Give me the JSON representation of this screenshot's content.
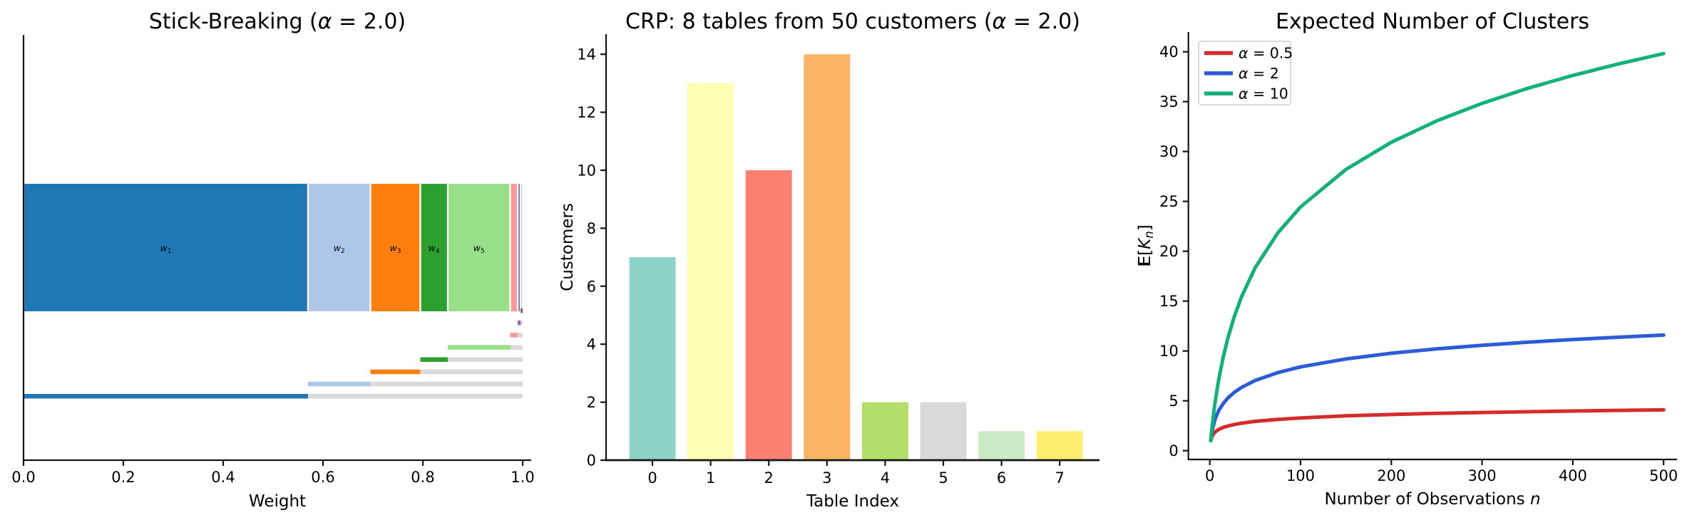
{
  "figure": {
    "background": "#ffffff",
    "text_color": "#000000",
    "spine_color": "#141414"
  },
  "chart_data": [
    {
      "id": "stick-breaking",
      "type": "bar",
      "subtype": "horizontal-stacked-stick-breaking",
      "title": "Stick-Breaking (α = 2.0)",
      "title_rich": [
        {
          "t": "Stick-Breaking ("
        },
        {
          "t": "α",
          "italic": true
        },
        {
          "t": " = 2.0)"
        }
      ],
      "xlabel": "Weight",
      "xlabel_rich": [
        {
          "t": "Weight"
        }
      ],
      "ylabel": "",
      "xlim": [
        0,
        1.0
      ],
      "xticks": [
        {
          "v": 0.0,
          "label": "0.0"
        },
        {
          "v": 0.2,
          "label": "0.2"
        },
        {
          "v": 0.4,
          "label": "0.4"
        },
        {
          "v": 0.6,
          "label": "0.6"
        },
        {
          "v": 0.8,
          "label": "0.8"
        },
        {
          "v": 1.0,
          "label": "1.0"
        }
      ],
      "weights": [
        0.57,
        0.125,
        0.1,
        0.055,
        0.125,
        0.015,
        0.006,
        0.004
      ],
      "segment_colors": [
        "#1f77b4",
        "#aec7e8",
        "#ff7f0e",
        "#2ca02c",
        "#98df8a",
        "#ff9896",
        "#9467bd",
        "#8c564b"
      ],
      "segment_labels_rich": [
        [
          {
            "t": "w",
            "italic": true
          },
          {
            "t": "1",
            "sub": true
          }
        ],
        [
          {
            "t": "w",
            "italic": true
          },
          {
            "t": "2",
            "sub": true
          }
        ],
        [
          {
            "t": "w",
            "italic": true
          },
          {
            "t": "3",
            "sub": true
          }
        ],
        [
          {
            "t": "w",
            "italic": true
          },
          {
            "t": "4",
            "sub": true
          }
        ],
        [
          {
            "t": "w",
            "italic": true
          },
          {
            "t": "5",
            "sub": true
          }
        ]
      ],
      "remainder_color": "#d9d9d9",
      "note": "Top stacked bar shows final weights w1..w8; thin rows below show each sequential break with light gray = remaining stick"
    },
    {
      "id": "crp",
      "type": "bar",
      "title": "CRP: 8 tables from 50 customers (α = 2.0)",
      "title_rich": [
        {
          "t": "CRP: 8 tables from 50 customers ("
        },
        {
          "t": "α",
          "italic": true
        },
        {
          "t": " = 2.0)"
        }
      ],
      "xlabel": "Table Index",
      "xlabel_rich": [
        {
          "t": "Table Index"
        }
      ],
      "ylabel": "Customers",
      "ylabel_rich": [
        {
          "t": "Customers"
        }
      ],
      "categories": [
        "0",
        "1",
        "2",
        "3",
        "4",
        "5",
        "6",
        "7"
      ],
      "values": [
        7,
        13,
        10,
        14,
        2,
        2,
        1,
        1
      ],
      "bar_colors": [
        "#8dd3c7",
        "#ffffb3",
        "#fb8072",
        "#fdb462",
        "#b3de69",
        "#d9d9d9",
        "#ccebc5",
        "#ffed6f"
      ],
      "yticks": [
        0,
        2,
        4,
        6,
        8,
        10,
        12,
        14
      ],
      "ylim": [
        0,
        14.7
      ]
    },
    {
      "id": "expected-clusters",
      "type": "line",
      "title": "Expected Number of Clusters",
      "title_rich": [
        {
          "t": "Expected Number of Clusters"
        }
      ],
      "xlabel": "Number of Observations n",
      "xlabel_rich": [
        {
          "t": "Number of Observations "
        },
        {
          "t": "n",
          "italic": true
        }
      ],
      "ylabel": "E[K_n]",
      "ylabel_rich": [
        {
          "t": "E",
          "doublestruck": true
        },
        {
          "t": "["
        },
        {
          "t": "K",
          "italic": true
        },
        {
          "t": "n",
          "italic": true,
          "sub": true
        },
        {
          "t": "]"
        }
      ],
      "xticks": [
        0,
        100,
        200,
        300,
        400,
        500
      ],
      "yticks": [
        0,
        5,
        10,
        15,
        20,
        25,
        30,
        35,
        40
      ],
      "xlim": [
        -24,
        513
      ],
      "ylim": [
        -0.9,
        42
      ],
      "x": [
        1,
        2,
        3,
        5,
        7,
        10,
        15,
        20,
        27,
        35,
        50,
        75,
        100,
        150,
        200,
        250,
        300,
        350,
        400,
        450,
        500
      ],
      "series": [
        {
          "name": "α = 0.5",
          "label_rich": [
            {
              "t": "α",
              "italic": true
            },
            {
              "t": " = 0.5"
            }
          ],
          "color": "#d62b2b",
          "values": [
            1.0,
            1.33,
            1.53,
            1.79,
            1.95,
            2.13,
            2.34,
            2.48,
            2.63,
            2.76,
            2.94,
            3.14,
            3.28,
            3.49,
            3.63,
            3.74,
            3.83,
            3.91,
            3.98,
            4.04,
            4.09
          ]
        },
        {
          "name": "α = 2",
          "label_rich": [
            {
              "t": "α",
              "italic": true
            },
            {
              "t": " = 2"
            }
          ],
          "color": "#2b5bd9",
          "values": [
            1.0,
            1.67,
            2.17,
            2.9,
            3.44,
            4.04,
            4.76,
            5.29,
            5.86,
            6.35,
            7.04,
            7.83,
            8.4,
            9.2,
            9.77,
            10.21,
            10.57,
            10.88,
            11.15,
            11.38,
            11.59
          ]
        },
        {
          "name": "α = 10",
          "label_rich": [
            {
              "t": "α",
              "italic": true
            },
            {
              "t": " = 10"
            }
          ],
          "color": "#12b17c",
          "values": [
            1.0,
            1.91,
            2.74,
            4.37,
            5.52,
            7.19,
            9.47,
            11.33,
            13.46,
            15.44,
            18.34,
            21.85,
            24.44,
            28.2,
            30.93,
            33.07,
            34.83,
            36.33,
            37.63,
            38.78,
            39.82
          ]
        }
      ],
      "legend": {
        "position": "upper-left",
        "border_color": "#cccccc",
        "background": "#ffffff"
      }
    }
  ]
}
